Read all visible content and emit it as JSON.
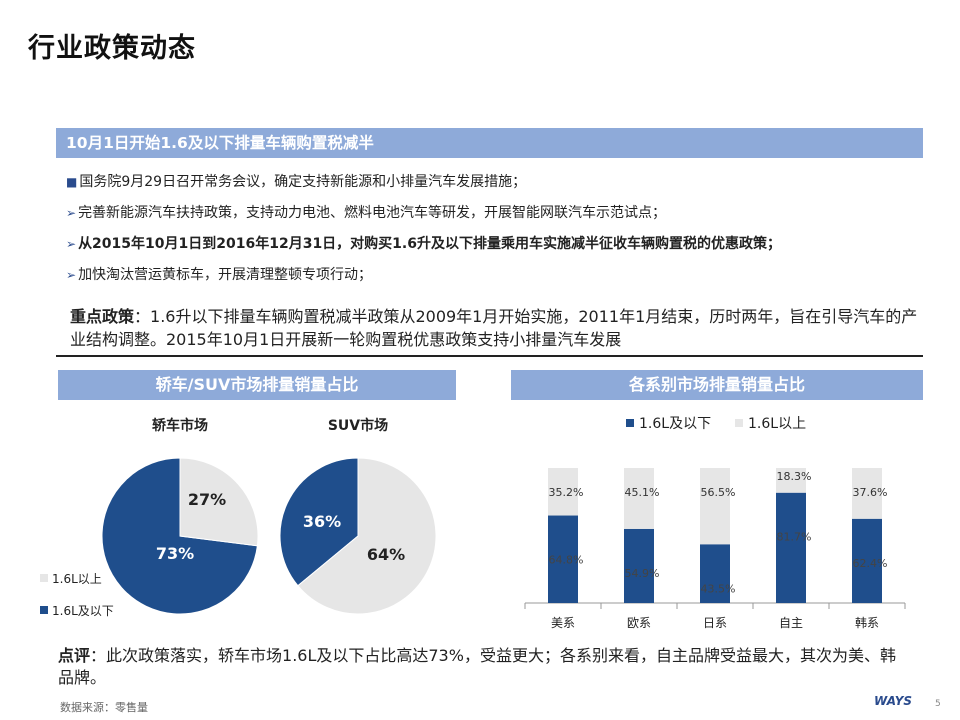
{
  "page": {
    "title": "行业政策动态",
    "banner_main": "10月1日开始1.6及以下排量车辆购置税减半",
    "bullets": [
      {
        "marker": "■",
        "text": "国务院9月29日召开常务会议，确定支持新能源和小排量汽车发展措施；",
        "bold": false
      },
      {
        "marker": "➢",
        "text": "完善新能源汽车扶持政策，支持动力电池、燃料电池汽车等研发，开展智能网联汽车示范试点；",
        "bold": false
      },
      {
        "marker": "➢",
        "text": "从2015年10月1日到2016年12月31日，对购买1.6升及以下排量乘用车实施减半征收车辆购置税的优惠政策；",
        "bold": true
      },
      {
        "marker": "➢",
        "text": "加快淘汰营运黄标车，开展清理整顿专项行动；",
        "bold": false
      }
    ],
    "key_policy_label": "重点政策",
    "key_policy_text": "：1.6升以下排量车辆购置税减半政策从2009年1月开始实施，2011年1月结束，历时两年，旨在引导汽车的产业结构调整。2015年10月1日开展新一轮购置税优惠政策支持小排量汽车发展",
    "banner_left": "轿车/SUV市场排量销量占比",
    "banner_right": "各系别市场排量销量占比",
    "comment_label": "点评",
    "comment_text": "：此次政策落实，轿车市场1.6L及以下占比高达73%，受益更大；各系别来看，自主品牌受益最大，其次为美、韩品牌。",
    "source": "数据来源：零售量",
    "logo": "WAYS",
    "page_number": "5"
  },
  "colors": {
    "dark": "#1f4e8c",
    "light": "#e6e6e6",
    "banner": "#8eaad9"
  },
  "chart_data": [
    {
      "type": "pie",
      "title": "轿车市场",
      "slices": [
        {
          "label": "1.6L及以下",
          "value": 73,
          "text": "73%"
        },
        {
          "label": "1.6L以上",
          "value": 27,
          "text": "27%"
        }
      ]
    },
    {
      "type": "pie",
      "title": "SUV市场",
      "slices": [
        {
          "label": "1.6L及以下",
          "value": 36,
          "text": "36%"
        },
        {
          "label": "1.6L以上",
          "value": 64,
          "text": "64%"
        }
      ]
    },
    {
      "type": "bar",
      "stacked": true,
      "categories": [
        "美系",
        "欧系",
        "日系",
        "自主",
        "韩系"
      ],
      "series": [
        {
          "name": "1.6L及以下",
          "values": [
            64.8,
            54.9,
            43.5,
            81.7,
            62.4
          ],
          "labels": [
            "64.8%",
            "54.9%",
            "43.5%",
            "81.7%",
            "62.4%"
          ]
        },
        {
          "name": "1.6L以上",
          "values": [
            35.2,
            45.1,
            56.5,
            18.3,
            37.6
          ],
          "labels": [
            "35.2%",
            "45.1%",
            "56.5%",
            "18.3%",
            "37.6%"
          ]
        }
      ],
      "ylim": [
        0,
        100
      ],
      "legend": "top"
    }
  ],
  "pie_legend": [
    "1.6L以上",
    "1.6L及以下"
  ]
}
